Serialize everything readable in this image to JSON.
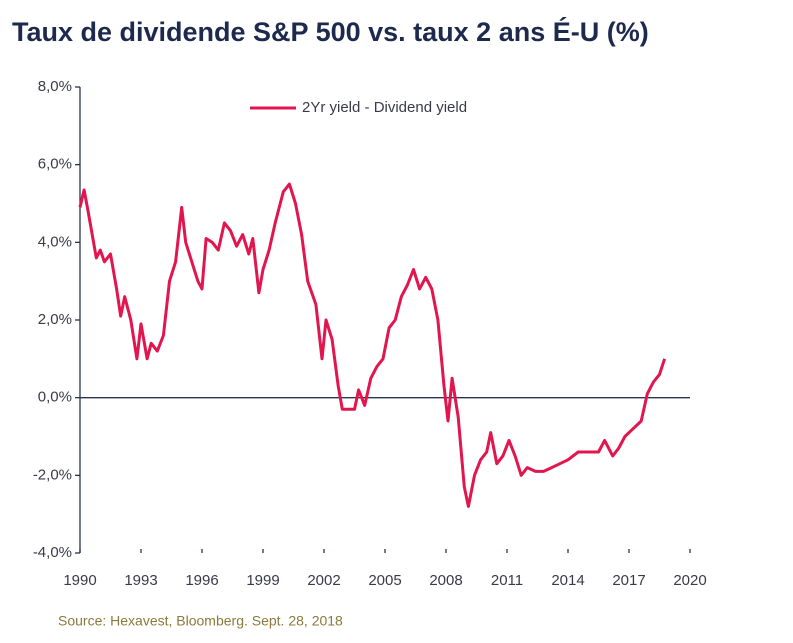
{
  "chart_data": {
    "type": "line",
    "title": "Taux de dividende S&P 500 vs. taux 2 ans É-U (%)",
    "source": "Source: Hexavest, Bloomberg. Sept. 28, 2018",
    "xlim": [
      1990,
      2020
    ],
    "xticks": [
      1990,
      1993,
      1996,
      1999,
      2002,
      2005,
      2008,
      2011,
      2014,
      2017,
      2020
    ],
    "ylim": [
      -4,
      8
    ],
    "yticks": [
      {
        "value": -4,
        "label": "-4,0%"
      },
      {
        "value": -2,
        "label": "-2,0%"
      },
      {
        "value": 0,
        "label": "0,0%"
      },
      {
        "value": 2,
        "label": "2,0%"
      },
      {
        "value": 4,
        "label": "4,0%"
      },
      {
        "value": 6,
        "label": "6,0%"
      },
      {
        "value": 8,
        "label": "8,0%"
      }
    ],
    "legend": "top",
    "x": [
      1990.0,
      1990.2,
      1990.4,
      1990.6,
      1990.8,
      1991.0,
      1991.2,
      1991.5,
      1991.8,
      1992.0,
      1992.2,
      1992.5,
      1992.8,
      1993.0,
      1993.3,
      1993.5,
      1993.8,
      1994.1,
      1994.4,
      1994.7,
      1995.0,
      1995.2,
      1995.5,
      1995.8,
      1996.0,
      1996.2,
      1996.5,
      1996.8,
      1997.1,
      1997.4,
      1997.7,
      1998.0,
      1998.3,
      1998.5,
      1998.8,
      1999.0,
      1999.3,
      1999.6,
      2000.0,
      2000.3,
      2000.6,
      2000.9,
      2001.2,
      2001.6,
      2001.9,
      2002.1,
      2002.4,
      2002.7,
      2002.9,
      2003.2,
      2003.5,
      2003.7,
      2004.0,
      2004.3,
      2004.6,
      2004.9,
      2005.2,
      2005.5,
      2005.8,
      2006.1,
      2006.4,
      2006.7,
      2007.0,
      2007.3,
      2007.6,
      2007.9,
      2008.1,
      2008.3,
      2008.6,
      2008.9,
      2009.1,
      2009.4,
      2009.7,
      2010.0,
      2010.2,
      2010.5,
      2010.8,
      2011.1,
      2011.4,
      2011.7,
      2012.0,
      2012.4,
      2012.8,
      2013.2,
      2013.6,
      2014.0,
      2014.5,
      2015.0,
      2015.5,
      2015.8,
      2016.2,
      2016.5,
      2016.8,
      2017.2,
      2017.6,
      2017.9,
      2018.2,
      2018.5,
      2018.75
    ],
    "series": [
      {
        "name": "2Yr yield - Dividend yield",
        "color": "#e2164f",
        "values": [
          4.9,
          5.35,
          4.8,
          4.2,
          3.6,
          3.8,
          3.5,
          3.7,
          2.8,
          2.1,
          2.6,
          2.0,
          1.0,
          1.9,
          1.0,
          1.4,
          1.2,
          1.6,
          3.0,
          3.5,
          4.9,
          4.0,
          3.5,
          3.0,
          2.8,
          4.1,
          4.0,
          3.8,
          4.5,
          4.3,
          3.9,
          4.2,
          3.7,
          4.1,
          2.7,
          3.3,
          3.8,
          4.5,
          5.3,
          5.5,
          5.0,
          4.2,
          3.0,
          2.4,
          1.0,
          2.0,
          1.5,
          0.3,
          -0.3,
          -0.3,
          -0.3,
          0.2,
          -0.2,
          0.5,
          0.8,
          1.0,
          1.8,
          2.0,
          2.6,
          2.9,
          3.3,
          2.8,
          3.1,
          2.8,
          2.0,
          0.3,
          -0.6,
          0.5,
          -0.5,
          -2.3,
          -2.8,
          -2.0,
          -1.6,
          -1.4,
          -0.9,
          -1.7,
          -1.5,
          -1.1,
          -1.5,
          -2.0,
          -1.8,
          -1.9,
          -1.9,
          -1.8,
          -1.7,
          -1.6,
          -1.4,
          -1.4,
          -1.4,
          -1.1,
          -1.5,
          -1.3,
          -1.0,
          -0.8,
          -0.6,
          0.1,
          0.4,
          0.6,
          1.0
        ]
      }
    ]
  }
}
